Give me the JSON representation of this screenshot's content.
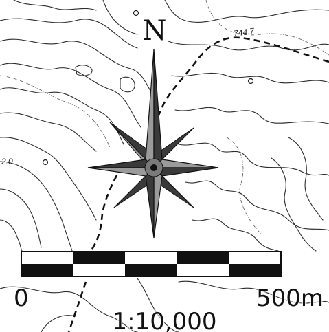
{
  "map": {
    "elevation_labels": [
      "744.7",
      "2.0"
    ],
    "north_label": "N"
  },
  "scale": {
    "zero_label": "0",
    "end_label": "500m",
    "ratio_label": "1:10,000",
    "segments": 5
  },
  "colors": {
    "ink": "#111111",
    "paper": "#ffffff",
    "compass_light": "#9a9a9a",
    "compass_dark": "#3a3a3a"
  }
}
